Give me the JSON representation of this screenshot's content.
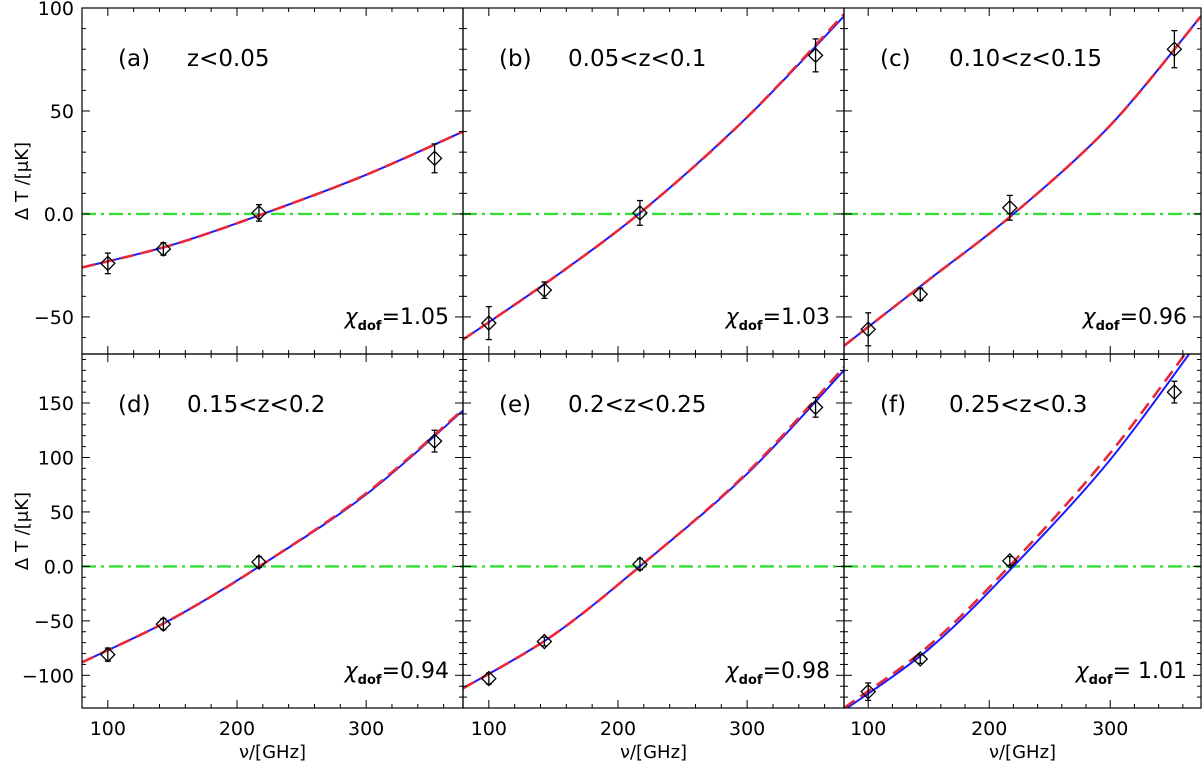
{
  "chart_data": {
    "type": "line",
    "shared": {
      "xlabel": "ν/[GHz]",
      "ylabel": "Δ T /[μK]",
      "xlim": [
        80,
        375
      ],
      "x_ticks": [
        100,
        200,
        300
      ],
      "x_tick_labels": [
        "100",
        "200",
        "300"
      ],
      "frequencies": [
        100,
        143,
        217,
        353
      ],
      "zero_line_y": 0,
      "colors": {
        "solid_model": "#1a1aff",
        "dashed_model": "#e8283a",
        "zero_line": "#33dd33",
        "data_marker": "#000000"
      }
    },
    "rows": [
      {
        "ylim": [
          -68,
          100
        ],
        "y_ticks": [
          -50,
          0,
          50,
          100
        ],
        "y_tick_labels": [
          "−50",
          "0.0",
          "50",
          "100"
        ]
      },
      {
        "ylim": [
          -130,
          195
        ],
        "y_ticks": [
          -100,
          -50,
          0,
          50,
          100,
          150
        ],
        "y_tick_labels": [
          "−100",
          "−50",
          "0.0",
          "50",
          "100",
          "150"
        ]
      }
    ],
    "panels": [
      {
        "label": "(a)",
        "range": "z<0.05",
        "chi_prefix": "χ",
        "chi_sub": "dof",
        "chi_value": "=1.05",
        "values": [
          -24,
          -17,
          0.5,
          27
        ],
        "errors": [
          5,
          3,
          4,
          7
        ],
        "curve_solid": [
          [
            80,
            -26
          ],
          [
            150,
            -15
          ],
          [
            220,
            0
          ],
          [
            300,
            19
          ],
          [
            375,
            40
          ]
        ],
        "curve_dashed": [
          [
            80,
            -26
          ],
          [
            150,
            -15
          ],
          [
            220,
            0
          ],
          [
            300,
            19
          ],
          [
            375,
            40
          ]
        ]
      },
      {
        "label": "(b)",
        "range": "0.05<z<0.1",
        "chi_prefix": "χ",
        "chi_sub": "dof",
        "chi_value": "=1.03",
        "values": [
          -53,
          -37,
          0.5,
          77
        ],
        "errors": [
          8,
          4,
          6,
          8
        ],
        "curve_solid": [
          [
            80,
            -61
          ],
          [
            150,
            -31
          ],
          [
            220,
            2
          ],
          [
            300,
            47
          ],
          [
            375,
            96
          ]
        ],
        "curve_dashed": [
          [
            80,
            -61
          ],
          [
            150,
            -31
          ],
          [
            220,
            2
          ],
          [
            300,
            47
          ],
          [
            375,
            97
          ]
        ]
      },
      {
        "label": "(c)",
        "range": "0.10<z<0.15",
        "chi_prefix": "χ",
        "chi_sub": "dof",
        "chi_value": "=0.96",
        "values": [
          -56,
          -39,
          3,
          80
        ],
        "errors": [
          8,
          3,
          6,
          9
        ],
        "curve_solid": [
          [
            80,
            -64
          ],
          [
            150,
            -32
          ],
          [
            220,
            0
          ],
          [
            300,
            43
          ],
          [
            375,
            96
          ]
        ],
        "curve_dashed": [
          [
            80,
            -64
          ],
          [
            150,
            -32
          ],
          [
            220,
            0
          ],
          [
            300,
            43
          ],
          [
            375,
            96
          ]
        ]
      },
      {
        "label": "(d)",
        "range": "0.15<z<0.2",
        "chi_prefix": "χ",
        "chi_sub": "dof",
        "chi_value": "=0.94",
        "values": [
          -81,
          -53,
          4,
          115
        ],
        "errors": [
          6,
          5,
          5,
          10
        ],
        "curve_solid": [
          [
            80,
            -88
          ],
          [
            150,
            -48
          ],
          [
            220,
            2
          ],
          [
            300,
            66
          ],
          [
            375,
            143
          ]
        ],
        "curve_dashed": [
          [
            80,
            -88
          ],
          [
            150,
            -48
          ],
          [
            220,
            2
          ],
          [
            300,
            67
          ],
          [
            375,
            144
          ]
        ]
      },
      {
        "label": "(e)",
        "range": "0.2<z<0.25",
        "chi_prefix": "χ",
        "chi_sub": "dof",
        "chi_value": "=0.98",
        "values": [
          -103,
          -69,
          2,
          146
        ],
        "errors": [
          5,
          4,
          5,
          9
        ],
        "curve_solid": [
          [
            80,
            -112
          ],
          [
            150,
            -63
          ],
          [
            220,
            3
          ],
          [
            300,
            85
          ],
          [
            375,
            180
          ]
        ],
        "curve_dashed": [
          [
            80,
            -112
          ],
          [
            150,
            -63
          ],
          [
            220,
            3
          ],
          [
            300,
            86
          ],
          [
            375,
            183
          ]
        ]
      },
      {
        "label": "(f)",
        "range": "0.25<z<0.3",
        "chi_prefix": "χ",
        "chi_sub": "dof",
        "chi_value": "=  1.01",
        "values": [
          -115,
          -85,
          5,
          160
        ],
        "errors": [
          8,
          4,
          4,
          10
        ],
        "curve_solid": [
          [
            80,
            -132
          ],
          [
            150,
            -76
          ],
          [
            220,
            0
          ],
          [
            300,
            98
          ],
          [
            375,
            210
          ]
        ],
        "curve_dashed": [
          [
            80,
            -130
          ],
          [
            150,
            -73
          ],
          [
            220,
            4
          ],
          [
            300,
            104
          ],
          [
            375,
            215
          ]
        ]
      }
    ]
  }
}
